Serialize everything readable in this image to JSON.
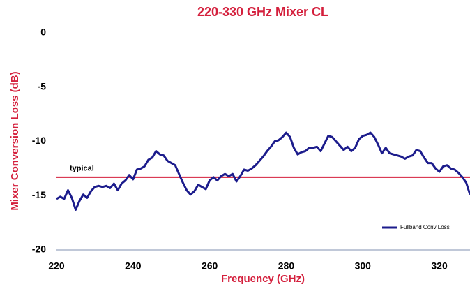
{
  "chart_data": {
    "type": "line",
    "title": "220-330 GHz Mixer CL",
    "x_label": "Frequency (GHz)",
    "y_label": "Mixer Conversion Loss (dB)",
    "annotation": "typical",
    "reference_line": -13.3,
    "reference_color": "#d41f3c",
    "xlim": [
      220,
      328
    ],
    "xticks": [
      220,
      240,
      260,
      280,
      300,
      320
    ],
    "ylim": [
      -20,
      0
    ],
    "yticks": [
      0,
      -5,
      -10,
      -15,
      -20
    ],
    "grid": false,
    "legend": "lower right",
    "x": [
      220,
      221,
      222,
      223,
      224,
      225,
      226,
      227,
      228,
      229,
      230,
      231,
      232,
      233,
      234,
      235,
      236,
      237,
      238,
      239,
      240,
      241,
      242,
      243,
      244,
      245,
      246,
      247,
      248,
      249,
      250,
      251,
      252,
      253,
      254,
      255,
      256,
      257,
      258,
      259,
      260,
      261,
      262,
      263,
      264,
      265,
      266,
      267,
      268,
      269,
      270,
      271,
      272,
      273,
      274,
      275,
      276,
      277,
      278,
      279,
      280,
      281,
      282,
      283,
      284,
      285,
      286,
      287,
      288,
      289,
      290,
      291,
      292,
      293,
      294,
      295,
      296,
      297,
      298,
      299,
      300,
      301,
      302,
      303,
      304,
      305,
      306,
      307,
      308,
      309,
      310,
      311,
      312,
      313,
      314,
      315,
      316,
      317,
      318,
      319,
      320,
      321,
      322,
      323,
      324,
      325,
      326,
      327,
      328
    ],
    "series": [
      {
        "name": "Fullband Conv Loss",
        "color": "#1c1c8c",
        "values": [
          -15.3,
          -15.1,
          -15.3,
          -14.5,
          -15.2,
          -16.3,
          -15.5,
          -14.9,
          -15.2,
          -14.6,
          -14.2,
          -14.1,
          -14.2,
          -14.1,
          -14.3,
          -13.9,
          -14.5,
          -13.9,
          -13.6,
          -13.1,
          -13.5,
          -12.6,
          -12.5,
          -12.3,
          -11.7,
          -11.5,
          -10.9,
          -11.2,
          -11.3,
          -11.8,
          -12.0,
          -12.2,
          -13.0,
          -13.8,
          -14.5,
          -14.9,
          -14.6,
          -14.0,
          -14.2,
          -14.4,
          -13.6,
          -13.3,
          -13.6,
          -13.2,
          -13.0,
          -13.2,
          -13.0,
          -13.7,
          -13.2,
          -12.6,
          -12.7,
          -12.5,
          -12.2,
          -11.8,
          -11.4,
          -10.9,
          -10.5,
          -10.0,
          -9.9,
          -9.6,
          -9.2,
          -9.6,
          -10.6,
          -11.2,
          -11.0,
          -10.9,
          -10.6,
          -10.6,
          -10.5,
          -10.9,
          -10.2,
          -9.5,
          -9.6,
          -10.0,
          -10.4,
          -10.8,
          -10.5,
          -10.9,
          -10.6,
          -9.8,
          -9.5,
          -9.4,
          -9.2,
          -9.6,
          -10.3,
          -11.1,
          -10.6,
          -11.1,
          -11.2,
          -11.3,
          -11.4,
          -11.6,
          -11.4,
          -11.3,
          -10.8,
          -10.9,
          -11.5,
          -12.0,
          -12.0,
          -12.5,
          -12.8,
          -12.3,
          -12.2,
          -12.5,
          -12.6,
          -12.9,
          -13.3,
          -13.8,
          -14.9
        ]
      }
    ]
  }
}
